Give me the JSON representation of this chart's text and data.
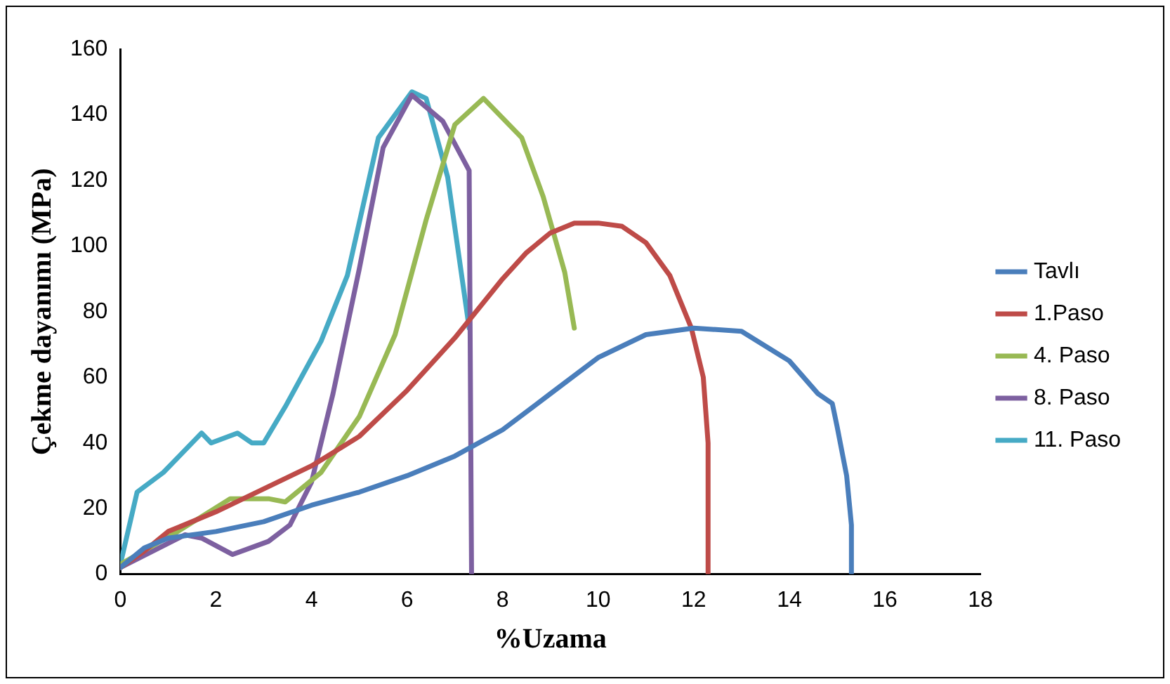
{
  "chart_data": {
    "type": "line",
    "xlabel": "%Uzama",
    "ylabel": "Çekme dayanımı (MPa)",
    "xlim": [
      0,
      18
    ],
    "xticks": [
      0,
      2,
      4,
      6,
      8,
      10,
      12,
      14,
      16,
      18
    ],
    "ylim": [
      0,
      160
    ],
    "yticks": [
      0,
      20,
      40,
      60,
      80,
      100,
      120,
      140,
      160
    ],
    "grid": false,
    "legend": "right",
    "marker": "none",
    "line_style": "solid",
    "series": [
      {
        "name": "Tavlı",
        "color": "#4a7ebb",
        "x": [
          0,
          0.5,
          1,
          2,
          3,
          4,
          5,
          6,
          7,
          8,
          9,
          10,
          11,
          12,
          13,
          14,
          14.6,
          14.9,
          15,
          15.2,
          15.3,
          15.3
        ],
        "values": [
          2,
          8,
          11,
          13,
          16,
          21,
          25,
          30,
          36,
          44,
          55,
          66,
          73,
          75,
          74,
          65,
          55,
          52,
          45,
          30,
          15,
          0
        ]
      },
      {
        "name": "1.Paso",
        "color": "#be4b48",
        "x": [
          0,
          0.5,
          1,
          2,
          3,
          4,
          5,
          6,
          7,
          8,
          8.5,
          9,
          9.5,
          10,
          10.5,
          11,
          11.5,
          11.95,
          12.2,
          12.3,
          12.3
        ],
        "values": [
          2,
          7,
          13,
          19,
          26,
          33,
          42,
          56,
          72,
          90,
          98,
          104,
          107,
          107,
          106,
          101,
          91,
          75,
          60,
          40,
          0
        ]
      },
      {
        "name": "4. Paso",
        "color": "#98b954",
        "x": [
          0,
          1.2,
          2.3,
          3.1,
          3.45,
          4.2,
          5,
          5.75,
          6.4,
          7,
          7.6,
          8.4,
          8.85,
          9.3,
          9.5
        ],
        "values": [
          3,
          13,
          23,
          23,
          22,
          31,
          48,
          73,
          108,
          137,
          145,
          133,
          115,
          92,
          75
        ]
      },
      {
        "name": "8. Paso",
        "color": "#7d60a0",
        "x": [
          0,
          1.35,
          1.7,
          2.35,
          3.1,
          3.55,
          4,
          4.45,
          5,
          5.5,
          6.1,
          6.75,
          7.3,
          7.35
        ],
        "values": [
          2,
          12,
          11,
          6,
          10,
          15,
          28,
          55,
          93,
          130,
          146,
          138,
          123,
          0
        ]
      },
      {
        "name": "11. Paso",
        "color": "#46aac5",
        "x": [
          0,
          0.35,
          0.9,
          1.7,
          1.9,
          2.45,
          2.75,
          3,
          3.45,
          4.2,
          4.75,
          5.4,
          6.1,
          6.4,
          6.85,
          7.3
        ],
        "values": [
          3,
          25,
          31,
          43,
          40,
          43,
          40,
          40,
          51,
          71,
          91,
          133,
          147,
          145,
          121,
          75
        ]
      }
    ]
  }
}
